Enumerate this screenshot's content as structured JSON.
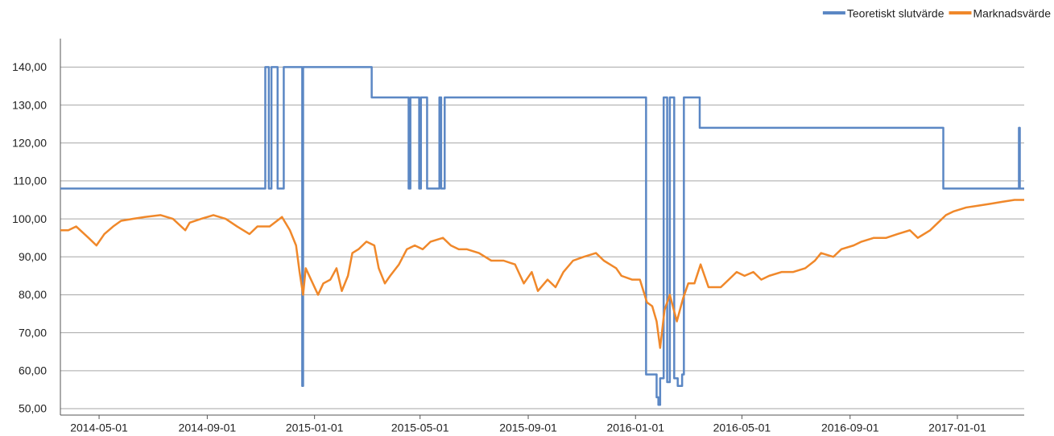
{
  "chart_data": {
    "type": "line",
    "xlim": [
      "2014-03-18",
      "2017-03-18"
    ],
    "xticks": [
      "2014-05-01",
      "2014-09-01",
      "2015-01-01",
      "2015-05-01",
      "2015-09-01",
      "2016-01-01",
      "2016-05-01",
      "2016-09-01",
      "2017-01-01"
    ],
    "ylim": [
      50,
      147.5
    ],
    "yticks": [
      {
        "value": 50,
        "label": "50,00"
      },
      {
        "value": 60,
        "label": "60,00"
      },
      {
        "value": 70,
        "label": "70,00"
      },
      {
        "value": 80,
        "label": "80,00"
      },
      {
        "value": 90,
        "label": "90,00"
      },
      {
        "value": 100,
        "label": "100,00"
      },
      {
        "value": 110,
        "label": "110,00"
      },
      {
        "value": 120,
        "label": "120,00"
      },
      {
        "value": 130,
        "label": "130,00"
      },
      {
        "value": 140,
        "label": "140,00"
      }
    ],
    "grid": true,
    "legend": "top-right",
    "series": [
      {
        "name": "Teoretiskt slutvärde",
        "color": "#5b87c4",
        "step": true,
        "x": [
          "2014-03-18",
          "2014-11-06",
          "2014-11-10",
          "2014-11-13",
          "2014-11-20",
          "2014-11-27",
          "2014-12-18",
          "2014-12-19",
          "2015-03-07",
          "2015-04-18",
          "2015-04-20",
          "2015-04-30",
          "2015-05-02",
          "2015-05-09",
          "2015-05-23",
          "2015-05-25",
          "2015-05-29",
          "2016-01-13",
          "2016-01-25",
          "2016-01-27",
          "2016-01-29",
          "2016-02-02",
          "2016-02-06",
          "2016-02-09",
          "2016-02-14",
          "2016-02-18",
          "2016-02-23",
          "2016-02-25",
          "2016-03-14",
          "2016-12-16",
          "2017-03-12",
          "2017-03-13",
          "2017-03-18"
        ],
        "values": [
          108,
          140,
          108,
          140,
          108,
          140,
          56,
          140,
          132,
          108,
          132,
          108,
          132,
          108,
          132,
          108,
          132,
          59,
          53,
          51,
          58,
          132,
          57,
          132,
          58,
          56,
          59,
          132,
          124,
          108,
          124,
          108,
          108
        ]
      },
      {
        "name": "Marknadsvärde",
        "color": "#f0882a",
        "x": [
          "2014-03-18",
          "2014-03-27",
          "2014-04-05",
          "2014-04-19",
          "2014-04-28",
          "2014-05-07",
          "2014-05-17",
          "2014-05-26",
          "2014-06-08",
          "2014-06-22",
          "2014-07-10",
          "2014-07-24",
          "2014-08-07",
          "2014-08-12",
          "2014-08-25",
          "2014-09-08",
          "2014-09-22",
          "2014-10-05",
          "2014-10-19",
          "2014-10-28",
          "2014-11-11",
          "2014-11-25",
          "2014-12-04",
          "2014-12-11",
          "2014-12-15",
          "2014-12-19",
          "2014-12-22",
          "2014-12-30",
          "2015-01-05",
          "2015-01-11",
          "2015-01-19",
          "2015-01-26",
          "2015-02-01",
          "2015-02-08",
          "2015-02-13",
          "2015-02-20",
          "2015-03-01",
          "2015-03-10",
          "2015-03-15",
          "2015-03-22",
          "2015-03-28",
          "2015-04-07",
          "2015-04-16",
          "2015-04-25",
          "2015-05-04",
          "2015-05-13",
          "2015-05-27",
          "2015-06-05",
          "2015-06-14",
          "2015-06-23",
          "2015-07-07",
          "2015-07-21",
          "2015-08-04",
          "2015-08-17",
          "2015-08-27",
          "2015-09-05",
          "2015-09-12",
          "2015-09-23",
          "2015-10-02",
          "2015-10-11",
          "2015-10-22",
          "2015-11-03",
          "2015-11-17",
          "2015-11-26",
          "2015-12-10",
          "2015-12-16",
          "2015-12-28",
          "2016-01-06",
          "2016-01-14",
          "2016-01-20",
          "2016-01-25",
          "2016-01-29",
          "2016-02-03",
          "2016-02-09",
          "2016-02-17",
          "2016-02-24",
          "2016-03-01",
          "2016-03-08",
          "2016-03-15",
          "2016-03-24",
          "2016-04-07",
          "2016-04-16",
          "2016-04-25",
          "2016-05-04",
          "2016-05-14",
          "2016-05-23",
          "2016-06-01",
          "2016-06-15",
          "2016-06-28",
          "2016-07-12",
          "2016-07-23",
          "2016-07-30",
          "2016-08-13",
          "2016-08-22",
          "2016-09-05",
          "2016-09-14",
          "2016-09-28",
          "2016-10-12",
          "2016-10-25",
          "2016-11-08",
          "2016-11-17",
          "2016-12-01",
          "2016-12-10",
          "2016-12-19",
          "2016-12-28",
          "2017-01-11",
          "2017-01-25",
          "2017-02-08",
          "2017-02-21",
          "2017-03-07",
          "2017-03-18"
        ],
        "values": [
          97,
          97,
          98,
          95,
          93,
          96,
          98,
          99.5,
          100,
          100.5,
          101,
          100,
          97,
          99,
          100,
          101,
          100,
          98,
          96,
          98,
          98,
          100.5,
          97,
          93,
          86,
          80,
          87,
          83,
          80,
          83,
          84,
          87,
          81,
          85,
          91,
          92,
          94,
          93,
          87,
          83,
          85,
          88,
          92,
          93,
          92,
          94,
          95,
          93,
          92,
          92,
          91,
          89,
          89,
          88,
          83,
          86,
          81,
          84,
          82,
          86,
          89,
          90,
          91,
          89,
          87,
          85,
          84,
          84,
          78,
          77,
          73,
          66,
          76,
          80,
          73,
          79,
          83,
          83,
          88,
          82,
          82,
          84,
          86,
          85,
          86,
          84,
          85,
          86,
          86,
          87,
          89,
          91,
          90,
          92,
          93,
          94,
          95,
          95,
          96,
          97,
          95,
          97,
          99,
          101,
          102,
          103,
          103.5,
          104,
          104.5,
          105,
          105
        ]
      }
    ]
  }
}
